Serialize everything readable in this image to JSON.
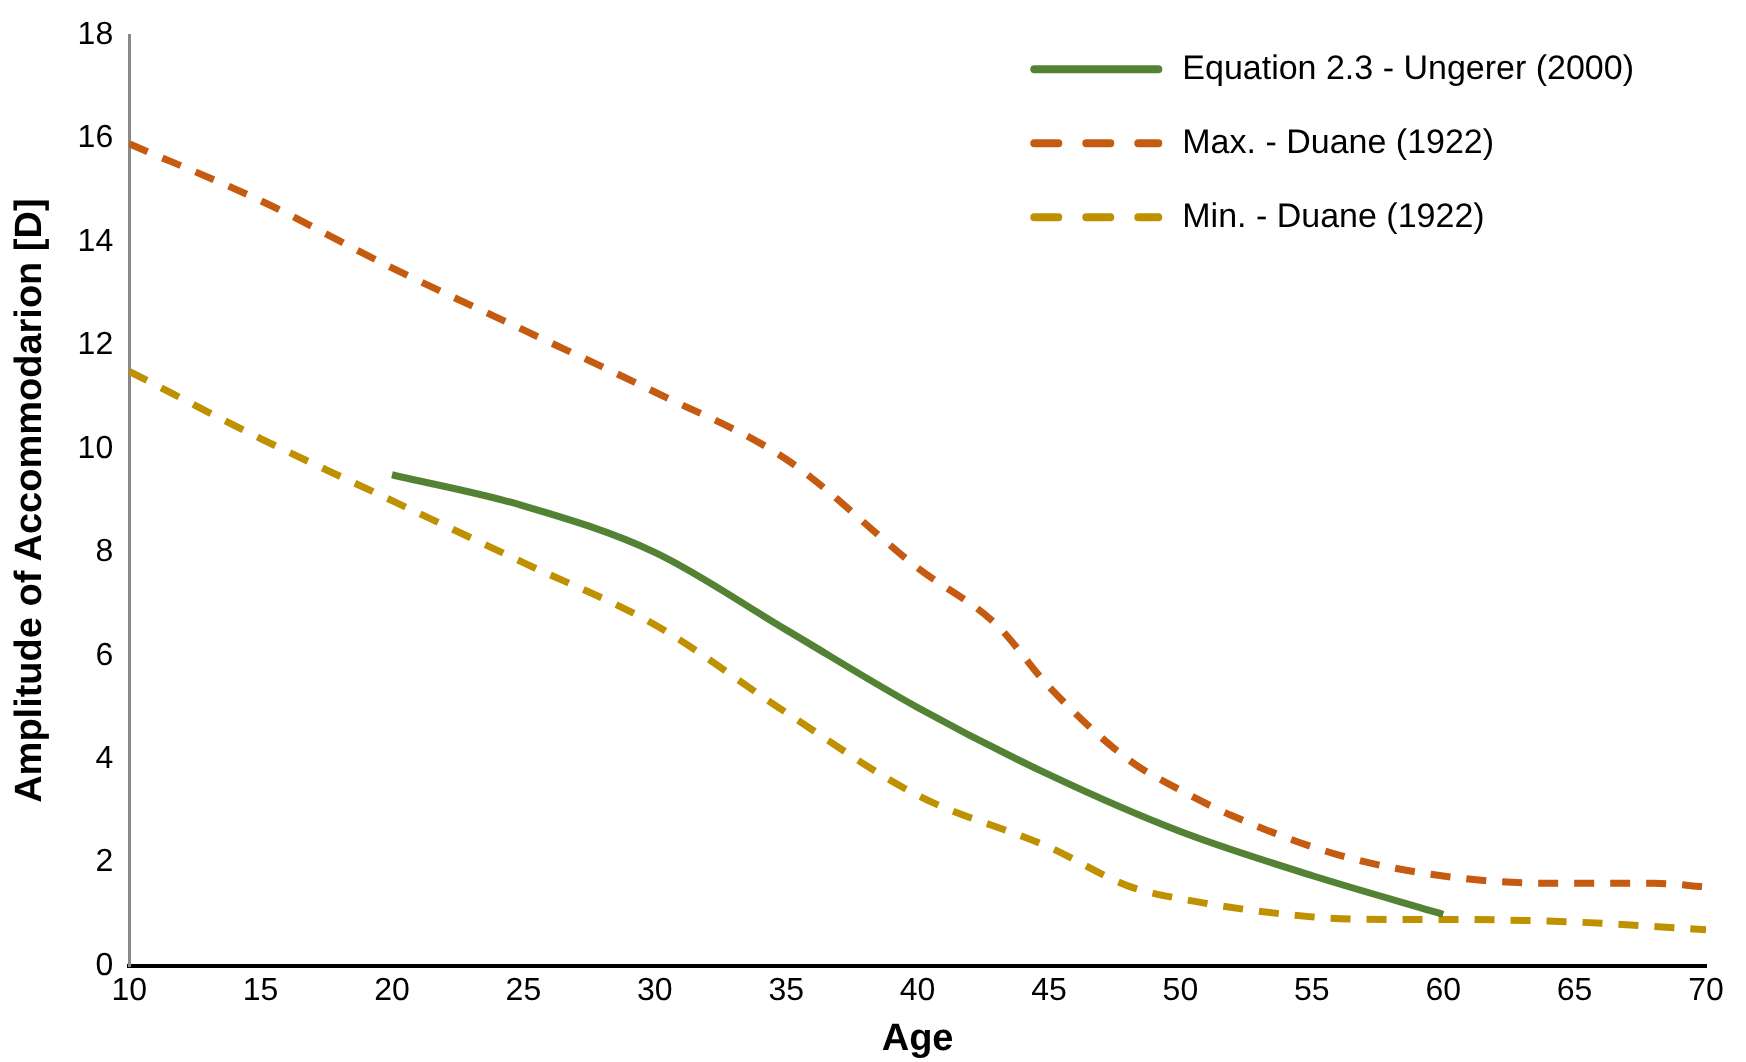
{
  "chart_data": {
    "type": "line",
    "xlabel": "Age",
    "ylabel": "Amplitude of Accommodarion [D]",
    "xlim": [
      10,
      70
    ],
    "xticks": [
      10,
      15,
      20,
      25,
      30,
      35,
      40,
      45,
      50,
      55,
      60,
      65,
      70
    ],
    "ylim": [
      0,
      18
    ],
    "yticks": [
      0,
      2,
      4,
      6,
      8,
      10,
      12,
      14,
      16,
      18
    ],
    "grid": false,
    "legend": "top right",
    "marker": "none",
    "series": [
      {
        "name": "Equation 2.3 - Ungerer (2000)",
        "color": "#548235",
        "line_style": "solid",
        "x": [
          20,
          25,
          30,
          35,
          40,
          45,
          50,
          55,
          60
        ],
        "values": [
          9.5,
          8.9,
          8.0,
          6.5,
          5.0,
          3.7,
          2.6,
          1.75,
          1.0
        ]
      },
      {
        "name": "Max. - Duane (1922)",
        "color": "#c55a11",
        "line_style": "dashed",
        "x": [
          10,
          15,
          20,
          25,
          30,
          35,
          40,
          43,
          45,
          48,
          50,
          52,
          56,
          60,
          64,
          68,
          70
        ],
        "values": [
          15.9,
          14.8,
          13.5,
          12.3,
          11.1,
          9.8,
          7.7,
          6.6,
          5.4,
          4.0,
          3.4,
          2.9,
          2.15,
          1.74,
          1.6,
          1.6,
          1.53
        ]
      },
      {
        "name": "Min. - Duane (1922)",
        "color": "#bf9000",
        "line_style": "dashed",
        "x": [
          10,
          15,
          20,
          25,
          30,
          35,
          40,
          45,
          48,
          50,
          55,
          58,
          60,
          65,
          70
        ],
        "values": [
          11.5,
          10.2,
          9.0,
          7.8,
          6.6,
          4.9,
          3.3,
          2.3,
          1.55,
          1.3,
          0.95,
          0.9,
          0.9,
          0.85,
          0.7
        ]
      }
    ]
  }
}
